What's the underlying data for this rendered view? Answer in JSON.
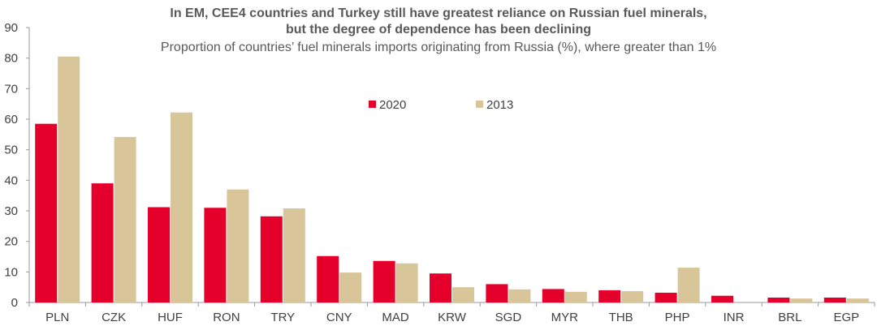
{
  "chart_data": {
    "type": "bar",
    "title": "In EM, CEE4 countries and Turkey still have greatest reliance on Russian fuel minerals,",
    "title_line2": "but the degree of dependence has been declining",
    "subtitle": "Proportion of countries’ fuel minerals imports originating from Russia (%), where greater than 1%",
    "categories": [
      "PLN",
      "CZK",
      "HUF",
      "RON",
      "TRY",
      "CNY",
      "MAD",
      "KRW",
      "SGD",
      "MYR",
      "THB",
      "PHP",
      "INR",
      "BRL",
      "EGP"
    ],
    "series": [
      {
        "name": "2020",
        "color": "#e4002b",
        "values": [
          58.5,
          39,
          31.2,
          31,
          28.2,
          15.2,
          13.6,
          9.5,
          6,
          4.4,
          4,
          3.2,
          2.2,
          1.6,
          1.6
        ]
      },
      {
        "name": "2013",
        "color": "#d8c599",
        "values": [
          80.5,
          54.2,
          62.2,
          37,
          30.8,
          9.8,
          12.8,
          5,
          4.3,
          3.5,
          3.7,
          11.4,
          0,
          1.3,
          1.3
        ]
      }
    ],
    "ylim": [
      0,
      90
    ],
    "yticks": [
      "0",
      "10",
      "20",
      "30",
      "40",
      "50",
      "60",
      "70",
      "80",
      "90"
    ],
    "legend_position": "upper-center",
    "grid": false
  }
}
